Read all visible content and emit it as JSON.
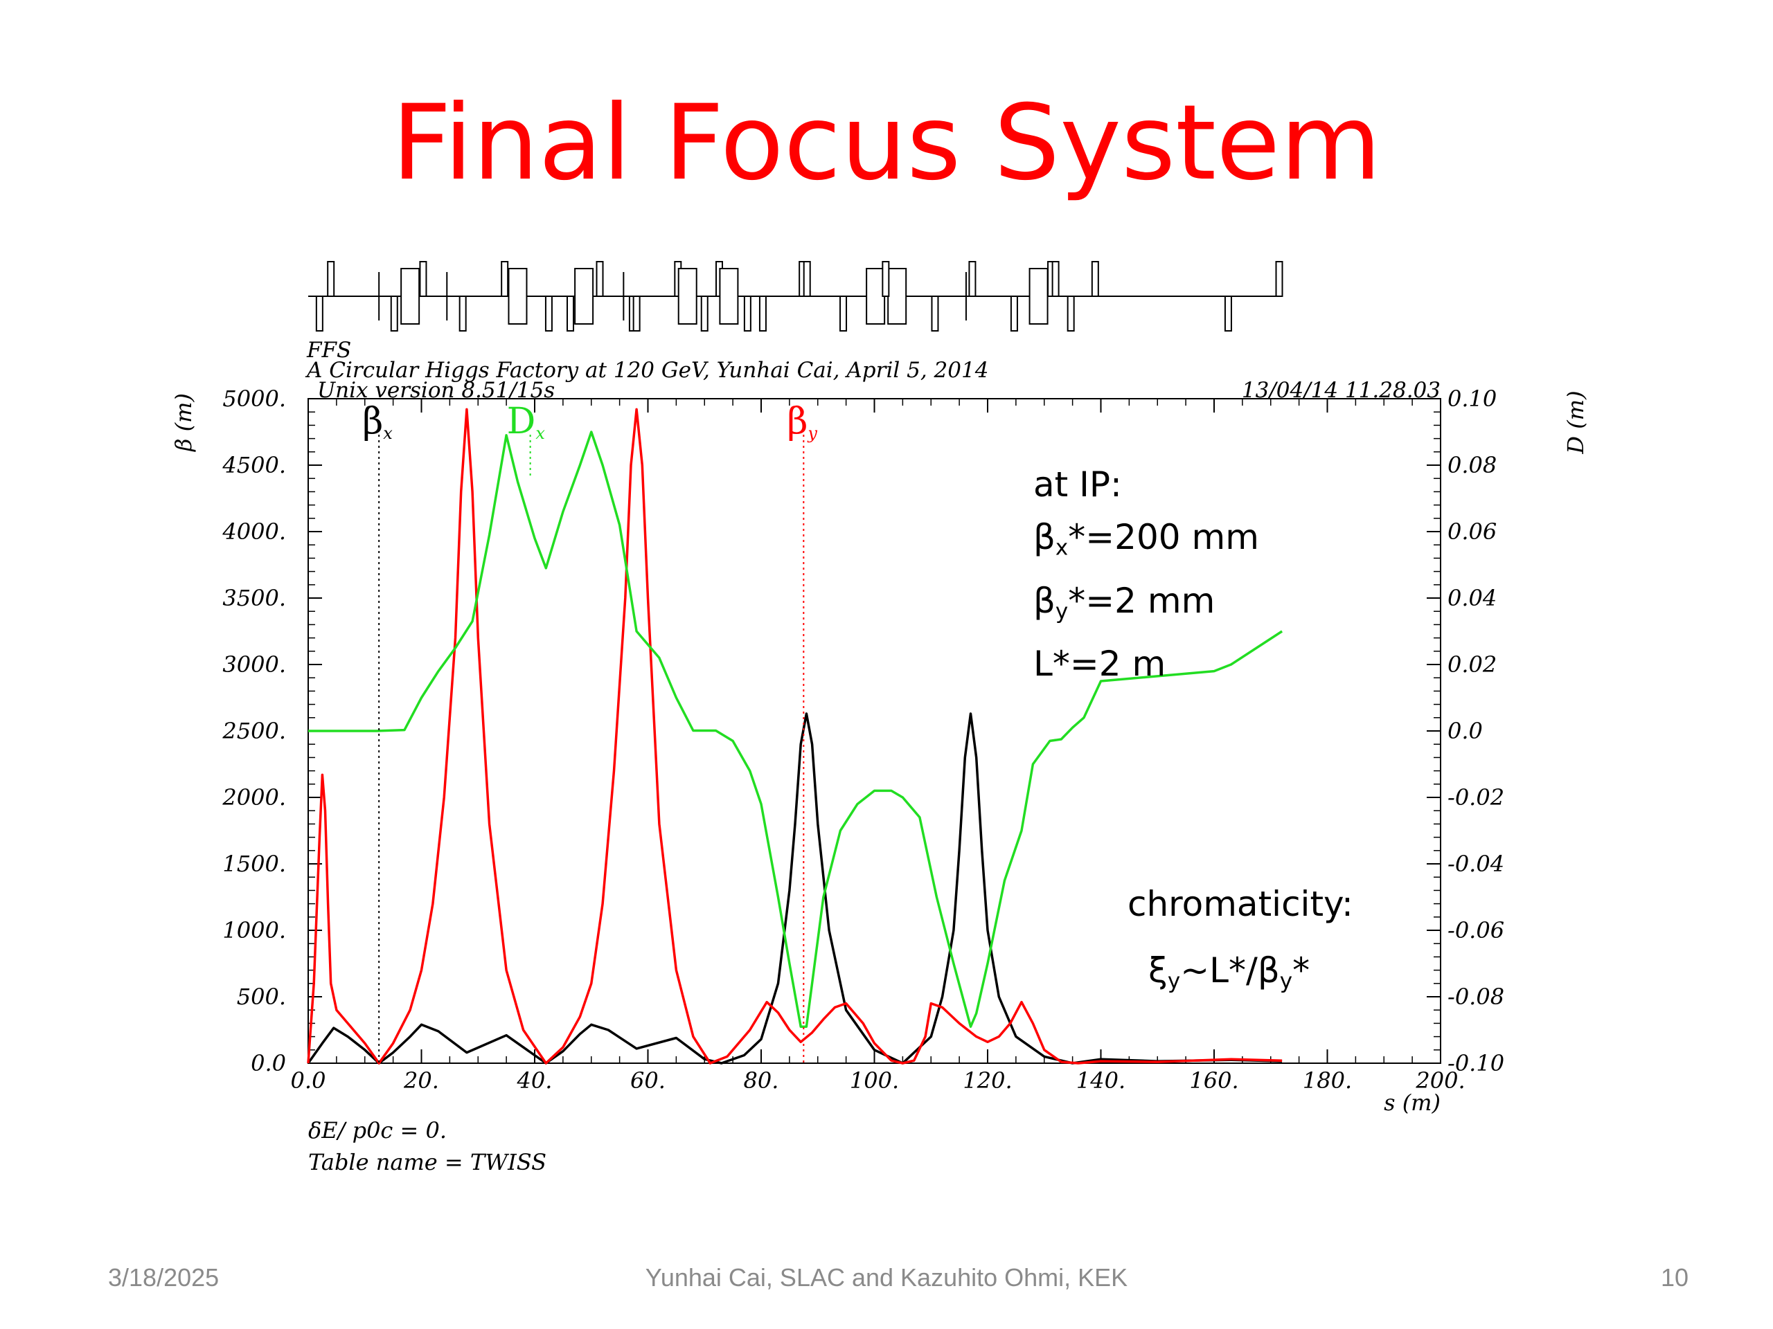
{
  "slide": {
    "title": "Final Focus System",
    "footer_date": "3/18/2025",
    "footer_author": "Yunhai Cai, SLAC  and Kazuhito Ohmi, KEK",
    "page_number": "10"
  },
  "annotations": {
    "at_ip": "at IP:",
    "beta_x_star": "=200 mm",
    "beta_y_star": "=2 mm",
    "l_star": "L*=2 m",
    "chromaticity": "chromaticity:",
    "xi_formula": "~L*/"
  },
  "chart_data": {
    "type": "line",
    "header": {
      "line1": "FFS",
      "line2": "A Circular Higgs Factory at 120 GeV, Yunhai Cai, April 5, 2014",
      "line3": "Unix version 8.51/15s",
      "timestamp": "13/04/14  11.28.03"
    },
    "xlabel": "s (m)",
    "ylabel_left": "β (m)",
    "ylabel_right": "D (m)",
    "xlim": [
      0,
      200
    ],
    "ylim_left": [
      0,
      5000
    ],
    "ylim_right": [
      -0.1,
      0.1
    ],
    "x_ticks": [
      "0.0",
      "20.",
      "40.",
      "60.",
      "80.",
      "100.",
      "120.",
      "140.",
      "160.",
      "180.",
      "200."
    ],
    "y_left_ticks": [
      "0.0",
      "500.",
      "1000.",
      "1500.",
      "2000.",
      "2500.",
      "3000.",
      "3500.",
      "4000.",
      "4500.",
      "5000."
    ],
    "y_right_ticks": [
      "-0.10",
      "-0.08",
      "-0.06",
      "-0.04",
      "-0.02",
      "0.0",
      "0.02",
      "0.04",
      "0.06",
      "0.08",
      "0.10"
    ],
    "footnote1": "δE/ p0c  =  0.",
    "footnote2": "Table name = TWISS",
    "series": [
      {
        "name": "βx",
        "axis": "left",
        "color": "#000000",
        "x": [
          0,
          2.5,
          4.5,
          7,
          10,
          12.5,
          15,
          18,
          20,
          23,
          28,
          35,
          42,
          45,
          48,
          50,
          53,
          58,
          65,
          70,
          73,
          77,
          80,
          83,
          85,
          86,
          87,
          88,
          89,
          90,
          92,
          95,
          100,
          105,
          110,
          112,
          114,
          115,
          116,
          117,
          118,
          119,
          120,
          122,
          125,
          130,
          135,
          140,
          150,
          163,
          172
        ],
        "y": [
          0,
          150,
          265,
          200,
          100,
          0,
          80,
          200,
          290,
          240,
          80,
          210,
          0,
          90,
          220,
          290,
          250,
          110,
          190,
          30,
          0,
          60,
          180,
          600,
          1300,
          1800,
          2400,
          2630,
          2400,
          1800,
          1000,
          400,
          100,
          0,
          200,
          500,
          1000,
          1600,
          2300,
          2630,
          2300,
          1600,
          1000,
          500,
          200,
          50,
          0,
          30,
          15,
          25,
          15
        ]
      },
      {
        "name": "βy",
        "axis": "left",
        "color": "#ff0000",
        "x": [
          0,
          1,
          2,
          2.5,
          3,
          3.5,
          4,
          5,
          7,
          10,
          12.5,
          15,
          18,
          20,
          22,
          24,
          26,
          27,
          28,
          29,
          30,
          32,
          35,
          38,
          42,
          45,
          48,
          50,
          52,
          54,
          56,
          57,
          58,
          59,
          60,
          62,
          65,
          68,
          71,
          74,
          78,
          81,
          83,
          85,
          87,
          89,
          91,
          93,
          95,
          98,
          100,
          103,
          105,
          107,
          109,
          110,
          112,
          115,
          118,
          120,
          122,
          124,
          126,
          128,
          130,
          133,
          136,
          140,
          150,
          163,
          172
        ],
        "y": [
          0,
          600,
          1700,
          2170,
          1900,
          1200,
          600,
          400,
          300,
          150,
          0,
          150,
          400,
          700,
          1200,
          2000,
          3200,
          4300,
          4920,
          4300,
          3200,
          1800,
          700,
          250,
          0,
          120,
          350,
          600,
          1200,
          2200,
          3500,
          4500,
          4920,
          4500,
          3500,
          1800,
          700,
          200,
          0,
          50,
          250,
          460,
          380,
          250,
          160,
          230,
          330,
          420,
          450,
          300,
          150,
          20,
          0,
          20,
          200,
          450,
          420,
          300,
          200,
          160,
          200,
          300,
          460,
          300,
          100,
          10,
          0,
          15,
          10,
          30,
          20
        ]
      },
      {
        "name": "Dx",
        "axis": "right",
        "color": "#22dd22",
        "x": [
          0,
          12,
          17,
          20,
          23,
          26,
          29,
          32,
          35,
          37,
          40,
          42,
          45,
          48,
          50,
          52,
          55,
          58,
          62,
          65,
          68,
          72,
          75,
          78,
          80,
          83,
          85,
          87,
          88,
          91,
          94,
          97,
          100,
          102,
          103,
          105,
          108,
          111,
          114,
          117,
          118,
          120,
          123,
          126,
          128,
          131,
          133,
          135,
          137,
          140,
          160,
          163,
          172
        ],
        "y": [
          0,
          0,
          0.0003,
          0.01,
          0.018,
          0.025,
          0.033,
          0.059,
          0.089,
          0.075,
          0.058,
          0.049,
          0.066,
          0.08,
          0.09,
          0.08,
          0.062,
          0.03,
          0.022,
          0.01,
          0.0001,
          0.0001,
          -0.003,
          -0.012,
          -0.022,
          -0.05,
          -0.07,
          -0.089,
          -0.089,
          -0.05,
          -0.03,
          -0.022,
          -0.018,
          -0.018,
          -0.018,
          -0.02,
          -0.026,
          -0.05,
          -0.07,
          -0.089,
          -0.085,
          -0.07,
          -0.045,
          -0.03,
          -0.01,
          -0.003,
          -0.0025,
          0.001,
          0.004,
          0.015,
          0.018,
          0.02,
          0.03
        ]
      }
    ],
    "series_labels": [
      {
        "text": "βx",
        "x": 12.5
      },
      {
        "text": "Dx",
        "x": 38
      },
      {
        "text": "βy",
        "x": 87.5
      }
    ],
    "lattice_elements": [
      {
        "s": 2.0,
        "type": "quad",
        "sign": -1
      },
      {
        "s": 4.0,
        "type": "quad",
        "sign": 1
      },
      {
        "s": 12.5,
        "type": "marker"
      },
      {
        "s": 15.2,
        "type": "quad",
        "sign": -1
      },
      {
        "s": 18.0,
        "type": "bend"
      },
      {
        "s": 20.3,
        "type": "quad",
        "sign": 1
      },
      {
        "s": 24.5,
        "type": "marker"
      },
      {
        "s": 27.3,
        "type": "quad",
        "sign": -1
      },
      {
        "s": 34.7,
        "type": "quad",
        "sign": 1
      },
      {
        "s": 37.0,
        "type": "bend"
      },
      {
        "s": 42.5,
        "type": "quad",
        "sign": -1
      },
      {
        "s": 46.3,
        "type": "quad",
        "sign": -1
      },
      {
        "s": 48.7,
        "type": "bend"
      },
      {
        "s": 51.5,
        "type": "quad",
        "sign": 1
      },
      {
        "s": 55.7,
        "type": "marker"
      },
      {
        "s": 57.3,
        "type": "quad",
        "sign": -1
      },
      {
        "s": 58.0,
        "type": "quad",
        "sign": -1
      },
      {
        "s": 65.3,
        "type": "quad",
        "sign": 1
      },
      {
        "s": 67.0,
        "type": "bend"
      },
      {
        "s": 70.0,
        "type": "quad",
        "sign": -1
      },
      {
        "s": 72.6,
        "type": "quad",
        "sign": 1
      },
      {
        "s": 74.3,
        "type": "bend"
      },
      {
        "s": 77.6,
        "type": "quad",
        "sign": -1
      },
      {
        "s": 80.3,
        "type": "quad",
        "sign": -1
      },
      {
        "s": 87.3,
        "type": "quad",
        "sign": 1
      },
      {
        "s": 88.1,
        "type": "quad",
        "sign": 1
      },
      {
        "s": 94.5,
        "type": "quad",
        "sign": -1
      },
      {
        "s": 100.2,
        "type": "bend"
      },
      {
        "s": 104.0,
        "type": "bend"
      },
      {
        "s": 102.0,
        "type": "quad",
        "sign": 1
      },
      {
        "s": 110.7,
        "type": "quad",
        "sign": -1
      },
      {
        "s": 117.3,
        "type": "quad",
        "sign": 1
      },
      {
        "s": 116.2,
        "type": "marker"
      },
      {
        "s": 124.7,
        "type": "quad",
        "sign": -1
      },
      {
        "s": 129.0,
        "type": "bend"
      },
      {
        "s": 131.2,
        "type": "quad",
        "sign": 1
      },
      {
        "s": 132.0,
        "type": "quad",
        "sign": 1
      },
      {
        "s": 134.7,
        "type": "quad",
        "sign": -1
      },
      {
        "s": 139.0,
        "type": "quad",
        "sign": 1
      },
      {
        "s": 162.5,
        "type": "quad",
        "sign": -1
      },
      {
        "s": 171.5,
        "type": "quad",
        "sign": 1
      }
    ]
  }
}
